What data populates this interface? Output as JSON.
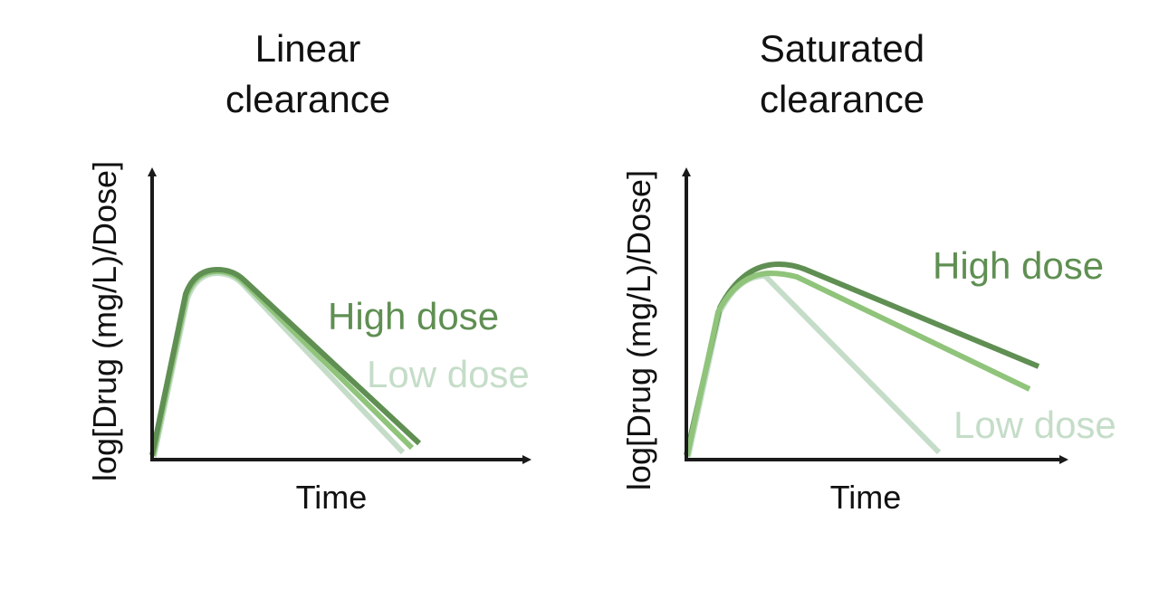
{
  "colors": {
    "high": "#5f8f52",
    "mid": "#8fc47a",
    "low": "#c5ddc8",
    "axis": "#1a1a1a"
  },
  "left": {
    "title_line1": "Linear",
    "title_line2": "clearance",
    "ylabel": "log[Drug (mg/L)/Dose]",
    "xlabel": "Time",
    "high_label": "High dose",
    "low_label": "Low dose"
  },
  "right": {
    "title_line1": "Saturated",
    "title_line2": "clearance",
    "ylabel": "log[Drug (mg/L)/Dose]",
    "xlabel": "Time",
    "high_label": "High dose",
    "low_label": "Low dose"
  }
}
